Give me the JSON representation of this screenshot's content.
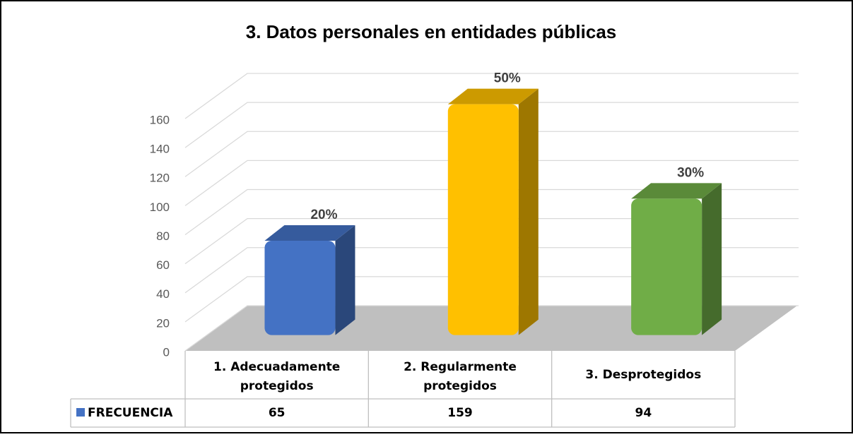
{
  "chart_data": {
    "type": "bar3d",
    "title": "3. Datos personales en entidades públicas",
    "categories": [
      "1. Adecuadamente protegidos",
      "2. Regularmente protegidos",
      "3. Desprotegidos"
    ],
    "series": [
      {
        "name": "FRECUENCIA",
        "color": "#4472c4",
        "values": [
          65,
          159,
          94
        ],
        "colors": [
          "#4472c4",
          "#ffc000",
          "#70ad47"
        ],
        "percent_labels": [
          "20%",
          "50%",
          "30%"
        ]
      }
    ],
    "ylim": [
      0,
      160
    ],
    "yticks": [
      0,
      20,
      40,
      60,
      80,
      100,
      120,
      140,
      160
    ],
    "grid": true
  }
}
